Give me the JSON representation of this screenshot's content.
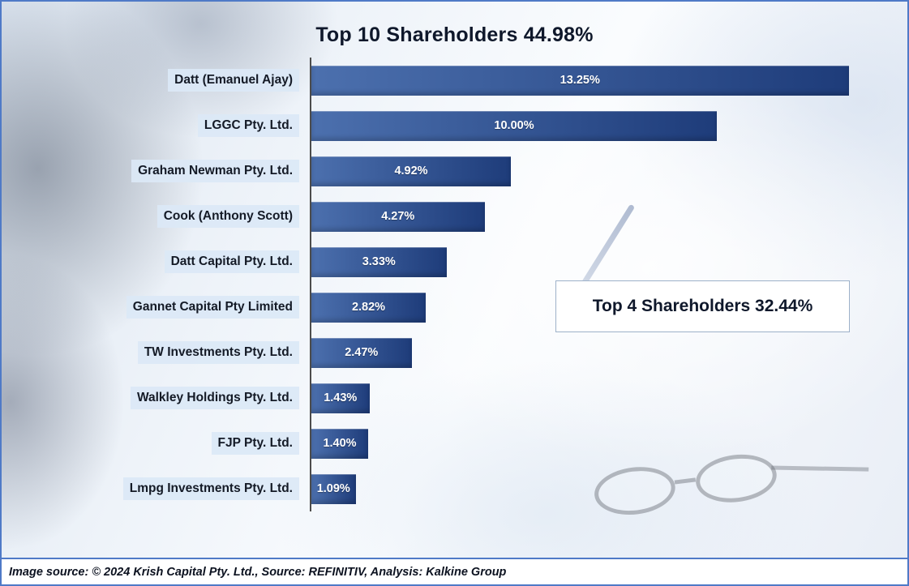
{
  "title": "Top 10 Shareholders 44.98%",
  "callout": {
    "label": "Top 4 Shareholders 32.44%"
  },
  "footer": {
    "text": "Image source: © 2024 Krish Capital Pty. Ltd., Source: REFINITIV, Analysis: Kalkine Group"
  },
  "colors": {
    "border": "#4f7ac7",
    "bar_start": "#4c70ae",
    "bar_end": "#1e3c7a",
    "label_band": "#dbe8f6",
    "axis": "#4c4c4c"
  },
  "chart_data": {
    "type": "bar",
    "orientation": "horizontal",
    "title": "Top 10 Shareholders 44.98%",
    "categories": [
      "Datt (Emanuel Ajay)",
      "LGGC Pty. Ltd.",
      "Graham Newman Pty. Ltd.",
      "Cook (Anthony Scott)",
      "Datt Capital Pty. Ltd.",
      "Gannet Capital Pty Limited",
      "TW Investments Pty. Ltd.",
      "Walkley Holdings Pty. Ltd.",
      "FJP Pty. Ltd.",
      "Lmpg Investments Pty. Ltd."
    ],
    "values": [
      13.25,
      10.0,
      4.92,
      4.27,
      3.33,
      2.82,
      2.47,
      1.43,
      1.4,
      1.09
    ],
    "value_labels": [
      "13.25%",
      "10.00%",
      "4.92%",
      "4.27%",
      "3.33%",
      "2.82%",
      "2.47%",
      "1.43%",
      "1.40%",
      "1.09%"
    ],
    "xlim": [
      0,
      13.33
    ],
    "grid": false,
    "legend": "none",
    "annotation": "Top 4 Shareholders 32.44%"
  }
}
